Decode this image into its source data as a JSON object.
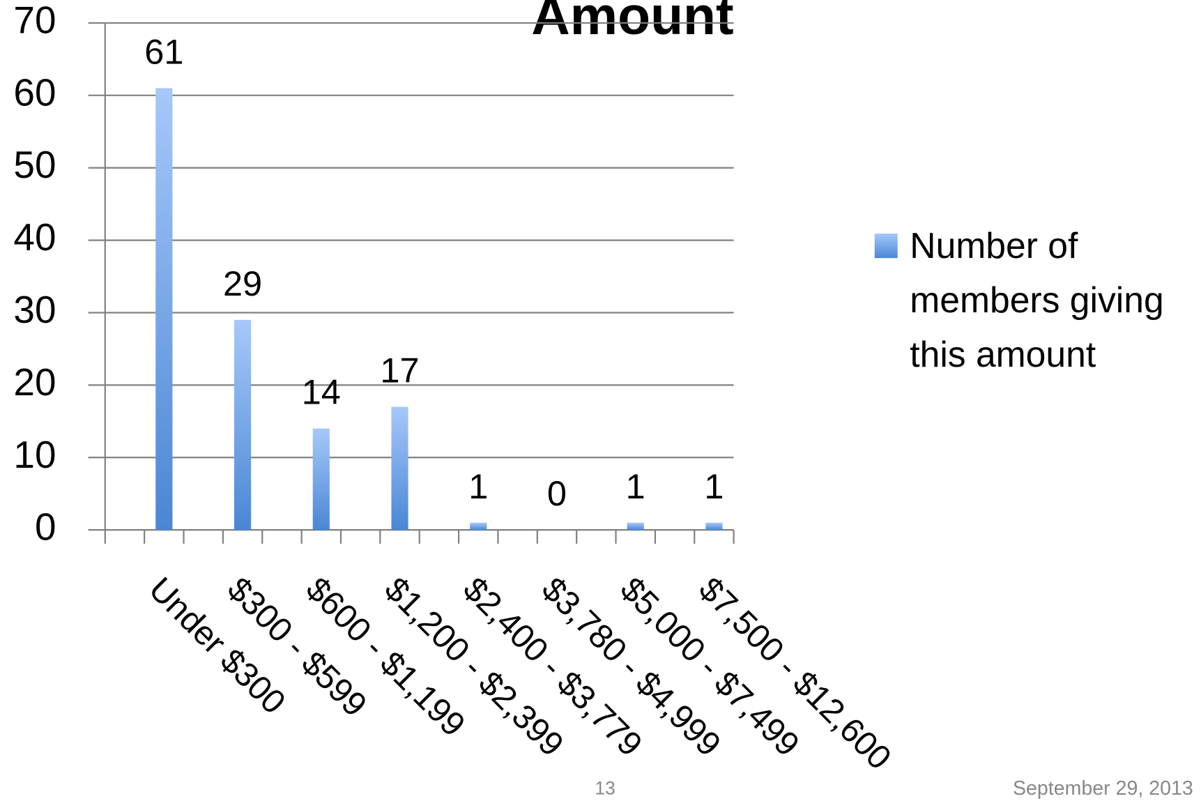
{
  "chart_data": {
    "type": "bar",
    "title": "Amount",
    "categories": [
      "Under $300",
      "$300 - $599",
      "$600 - $1,199",
      "$1,200 - $2,399",
      "$2,400 - $3,779",
      "$3,780 - $4,999",
      "$5,000 - $7,499",
      "$7,500 - $12,600"
    ],
    "series": [
      {
        "name": "Number of members giving this amount",
        "color": "#4a86d4",
        "values": [
          61,
          29,
          14,
          17,
          1,
          0,
          1,
          1
        ]
      }
    ],
    "ylim": [
      0,
      70
    ],
    "yticks": [
      0,
      10,
      20,
      30,
      40,
      50,
      60,
      70
    ],
    "grid": true,
    "legend": "right"
  },
  "footer": {
    "page_number": "13",
    "date": "September 29, 2013"
  }
}
